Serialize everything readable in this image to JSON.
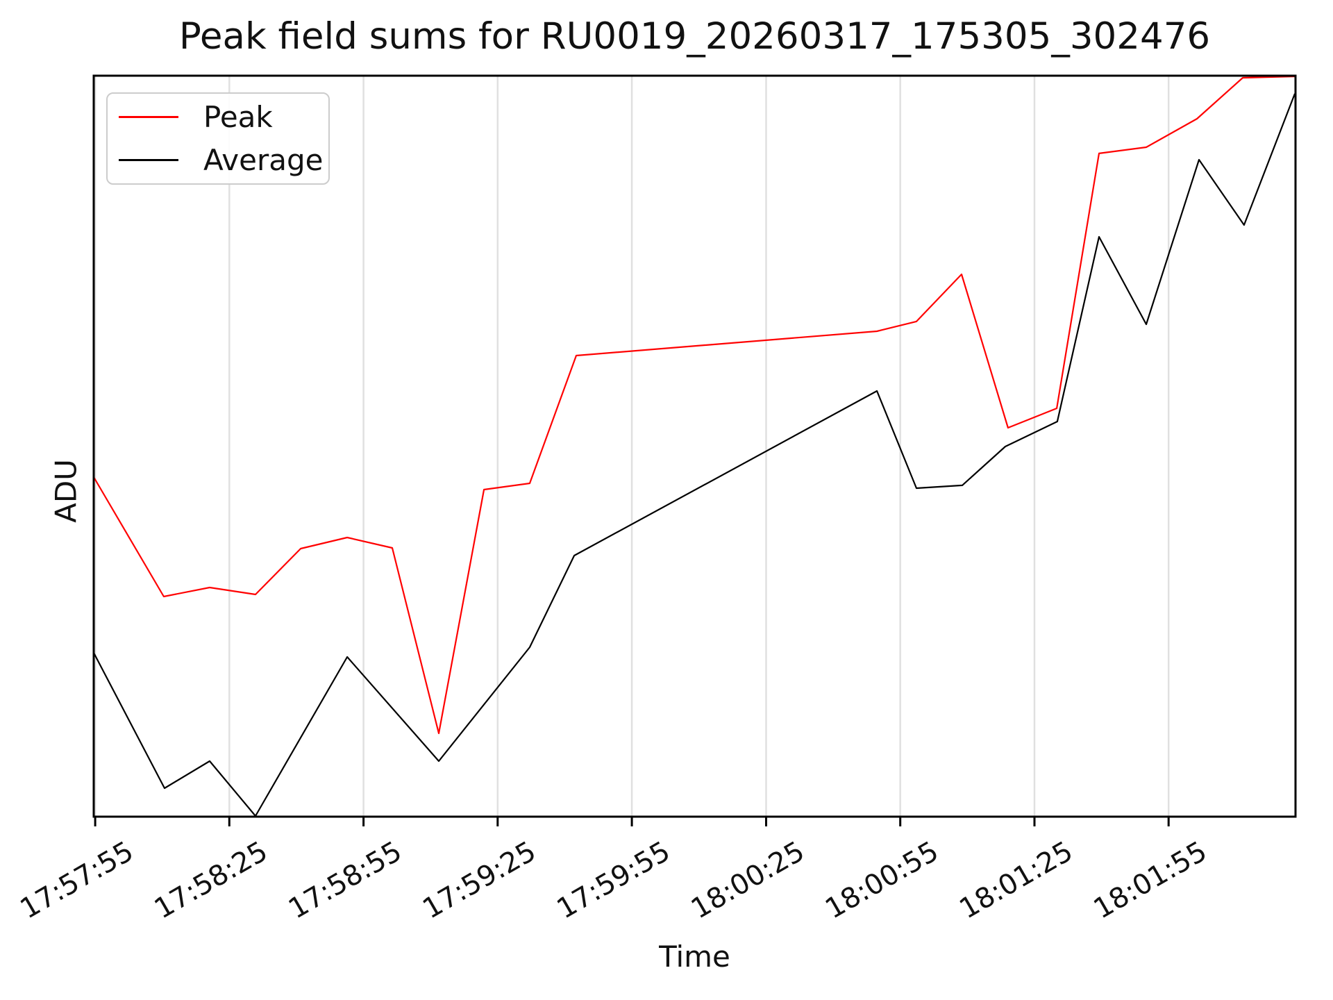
{
  "colors": {
    "background": "#ffffff",
    "grid": "#e0e0e0",
    "axes": "#000000",
    "peak_line": "#ff0000",
    "average_line": "#000000",
    "legend_border": "#cccccc"
  },
  "legend": {
    "items": [
      {
        "label": "Peak",
        "color": "#ff0000"
      },
      {
        "label": "Average",
        "color": "#000000"
      }
    ]
  },
  "chart_data": {
    "type": "line",
    "title": "Peak field sums for RU0019_20260317_175305_302476",
    "xlabel": "Time",
    "ylabel": "ADU",
    "grid": "vertical-gridlines-only",
    "legend_position": "upper-left",
    "x_range": [
      "17:57:55",
      "18:02:23"
    ],
    "y_axis_note": "no y tick marks or labels shown; vf = fraction of axis height (0 = bottom, 1 = top)",
    "x_ticks": [
      {
        "label": "17:57:55",
        "xf": 0.0012
      },
      {
        "label": "17:58:25",
        "xf": 0.1128
      },
      {
        "label": "17:58:55",
        "xf": 0.2245
      },
      {
        "label": "17:59:25",
        "xf": 0.3361
      },
      {
        "label": "17:59:55",
        "xf": 0.4478
      },
      {
        "label": "18:00:25",
        "xf": 0.5595
      },
      {
        "label": "18:00:55",
        "xf": 0.6711
      },
      {
        "label": "18:01:25",
        "xf": 0.7828
      },
      {
        "label": "18:01:55",
        "xf": 0.8944
      }
    ],
    "series": [
      {
        "name": "Peak",
        "color": "#ff0000",
        "points": [
          {
            "time": "17:57:55",
            "xf": 0.0,
            "vf": 0.4583
          },
          {
            "time": "17:58:10",
            "xf": 0.0583,
            "vf": 0.2971
          },
          {
            "time": "17:58:21",
            "xf": 0.0965,
            "vf": 0.3093
          },
          {
            "time": "17:58:31",
            "xf": 0.1346,
            "vf": 0.2999
          },
          {
            "time": "17:58:41",
            "xf": 0.1722,
            "vf": 0.3618
          },
          {
            "time": "17:58:51",
            "xf": 0.2109,
            "vf": 0.3768
          },
          {
            "time": "17:59:01",
            "xf": 0.2484,
            "vf": 0.3627
          },
          {
            "time": "17:59:12",
            "xf": 0.2871,
            "vf": 0.1125
          },
          {
            "time": "17:59:22",
            "xf": 0.3247,
            "vf": 0.4414
          },
          {
            "time": "17:59:32",
            "xf": 0.3628,
            "vf": 0.4499
          },
          {
            "time": "17:59:43",
            "xf": 0.4015,
            "vf": 0.6223
          },
          {
            "time": "18:00:50",
            "xf": 0.6517,
            "vf": 0.6551
          },
          {
            "time": "18:00:59",
            "xf": 0.6846,
            "vf": 0.6683
          },
          {
            "time": "18:01:09",
            "xf": 0.7221,
            "vf": 0.732
          },
          {
            "time": "18:01:19",
            "xf": 0.7608,
            "vf": 0.5248
          },
          {
            "time": "18:01:30",
            "xf": 0.8013,
            "vf": 0.5511
          },
          {
            "time": "18:01:39",
            "xf": 0.8365,
            "vf": 0.8951
          },
          {
            "time": "18:01:50",
            "xf": 0.8758,
            "vf": 0.9035
          },
          {
            "time": "18:02:01",
            "xf": 0.918,
            "vf": 0.9419
          },
          {
            "time": "18:02:11",
            "xf": 0.9561,
            "vf": 0.9972
          },
          {
            "time": "18:02:23",
            "xf": 1.0,
            "vf": 0.9991
          }
        ]
      },
      {
        "name": "Average",
        "color": "#000000",
        "points": [
          {
            "time": "17:57:55",
            "xf": 0.0,
            "vf": 0.2212
          },
          {
            "time": "17:58:10",
            "xf": 0.0589,
            "vf": 0.0384
          },
          {
            "time": "17:58:21",
            "xf": 0.0965,
            "vf": 0.075
          },
          {
            "time": "17:58:31",
            "xf": 0.1346,
            "vf": 0.0009
          },
          {
            "time": "17:58:51",
            "xf": 0.2109,
            "vf": 0.2156
          },
          {
            "time": "17:59:12",
            "xf": 0.2871,
            "vf": 0.075
          },
          {
            "time": "17:59:32",
            "xf": 0.3628,
            "vf": 0.2287
          },
          {
            "time": "17:59:42",
            "xf": 0.3998,
            "vf": 0.3524
          },
          {
            "time": "18:00:50",
            "xf": 0.6517,
            "vf": 0.5745
          },
          {
            "time": "18:00:59",
            "xf": 0.6846,
            "vf": 0.4433
          },
          {
            "time": "18:01:09",
            "xf": 0.7227,
            "vf": 0.4471
          },
          {
            "time": "18:01:18",
            "xf": 0.7585,
            "vf": 0.4995
          },
          {
            "time": "18:01:30",
            "xf": 0.8018,
            "vf": 0.5333
          },
          {
            "time": "18:01:39",
            "xf": 0.8365,
            "vf": 0.7826
          },
          {
            "time": "18:01:50",
            "xf": 0.8758,
            "vf": 0.6645
          },
          {
            "time": "18:02:02",
            "xf": 0.9197,
            "vf": 0.8866
          },
          {
            "time": "18:02:12",
            "xf": 0.9572,
            "vf": 0.7985
          },
          {
            "time": "18:02:23",
            "xf": 0.9994,
            "vf": 0.9757
          }
        ]
      }
    ]
  }
}
